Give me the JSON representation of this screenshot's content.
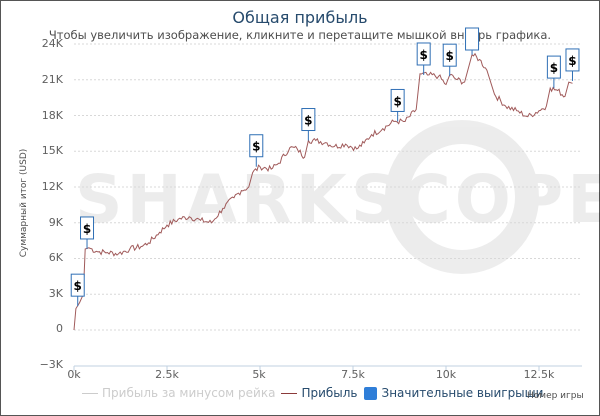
{
  "title": "Общая прибыль",
  "subtitle": "Чтобы увеличить изображение, кликните и перетащите мышкой внутрь графика.",
  "watermark": "SHARKSCOPE",
  "y_axis": {
    "label": "Суммарный итог (USD)",
    "ticks": [
      "24K",
      "21K",
      "18K",
      "15K",
      "12K",
      "9K",
      "6K",
      "3K",
      "0",
      "−3K"
    ]
  },
  "x_axis": {
    "label": "Номер игры",
    "ticks": [
      "0k",
      "2.5k",
      "5k",
      "7.5k",
      "10k",
      "12.5k"
    ]
  },
  "legend": {
    "items": [
      {
        "label": "Прибыль за минусом рейка",
        "color": "#cccccc",
        "enabled": false
      },
      {
        "label": "Прибыль",
        "color": "#8b3a3a",
        "enabled": true
      },
      {
        "label": "Значительные выигрыши",
        "color": "#2f7ed8",
        "enabled": true
      }
    ]
  },
  "flag_symbol": "$",
  "colors": {
    "line": "#a05a5a",
    "flag_border": "#2f6fb5",
    "grid": "#d8d8d8",
    "title": "#274b6d"
  },
  "chart_data": {
    "type": "line",
    "title": "Общая прибыль",
    "xlabel": "Номер игры",
    "ylabel": "Суммарный итог (USD)",
    "xlim": [
      0,
      13500
    ],
    "ylim": [
      -3000,
      24000
    ],
    "grid": true,
    "legend_position": "bottom",
    "series": [
      {
        "name": "Прибыль",
        "x": [
          0,
          50,
          150,
          250,
          300,
          400,
          600,
          900,
          1200,
          1500,
          1800,
          2000,
          2300,
          2500,
          2800,
          3100,
          3400,
          3700,
          4000,
          4300,
          4500,
          4700,
          4800,
          5000,
          5300,
          5500,
          5800,
          6000,
          6200,
          6300,
          6500,
          6800,
          7000,
          7300,
          7600,
          7800,
          8000,
          8300,
          8600,
          8900,
          9200,
          9300,
          9500,
          9800,
          10000,
          10100,
          10300,
          10500,
          10700,
          10900,
          11100,
          11300,
          11600,
          11900,
          12200,
          12500,
          12700,
          12800,
          13000,
          13200,
          13300,
          13400
        ],
        "values": [
          0,
          1800,
          2300,
          3000,
          6800,
          6900,
          6600,
          6500,
          6400,
          6800,
          7000,
          7300,
          8200,
          8800,
          9300,
          9500,
          9200,
          9000,
          10200,
          11100,
          11700,
          12000,
          13200,
          13700,
          13500,
          14000,
          15300,
          15200,
          14500,
          15900,
          15900,
          15700,
          15400,
          15600,
          15200,
          15700,
          16400,
          16900,
          17500,
          17500,
          18500,
          21500,
          21400,
          21300,
          20600,
          21400,
          21000,
          20800,
          23100,
          22700,
          21800,
          19800,
          18800,
          18400,
          17900,
          18400,
          18800,
          20300,
          20100,
          19600,
          20800,
          20700
        ]
      },
      {
        "name": "Прибыль за минусом рейка",
        "enabled": false,
        "values": []
      }
    ],
    "flags": {
      "name": "Значительные выигрыши",
      "x": [
        100,
        350,
        4900,
        6300,
        8700,
        9400,
        10100,
        10700,
        12900,
        13400
      ],
      "values": [
        2000,
        6800,
        13700,
        15900,
        17500,
        21400,
        21300,
        23100,
        20300,
        20900
      ]
    }
  }
}
